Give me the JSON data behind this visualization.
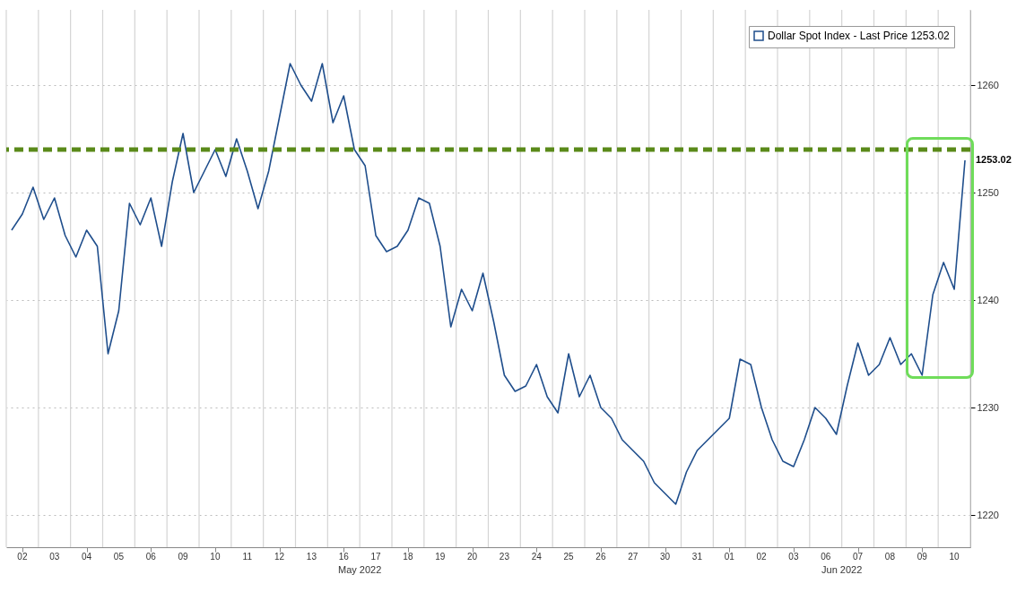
{
  "chart_data": {
    "type": "line",
    "categories": [
      null,
      "02",
      null,
      null,
      "03",
      null,
      null,
      "04",
      null,
      null,
      "05",
      null,
      null,
      "06",
      null,
      null,
      "09",
      null,
      null,
      "10",
      null,
      null,
      "11",
      null,
      null,
      "12",
      null,
      null,
      "13",
      null,
      null,
      "16",
      null,
      null,
      "17",
      null,
      null,
      "18",
      null,
      null,
      "19",
      null,
      null,
      "20",
      null,
      null,
      "23",
      null,
      null,
      "24",
      null,
      null,
      "25",
      null,
      null,
      "26",
      null,
      null,
      "27",
      null,
      null,
      "30",
      null,
      null,
      "31",
      null,
      null,
      "01",
      null,
      null,
      "02",
      null,
      null,
      "03",
      null,
      null,
      "06",
      null,
      null,
      "07",
      null,
      null,
      "08",
      null,
      null,
      "09",
      null,
      null,
      "10",
      null
    ],
    "series": [
      {
        "name": "Dollar Spot Index - Last Price 1253.02",
        "color": "#1f4e8c",
        "values": [
          1246.5,
          1248,
          1250.5,
          1247.5,
          1249.5,
          1246,
          1244,
          1246.5,
          1245,
          1235,
          1239,
          1249,
          1247,
          1249.5,
          1245,
          1251,
          1255.5,
          1250,
          1252,
          1254,
          1251.5,
          1255,
          1252,
          1248.5,
          1252,
          1257,
          1262,
          1260,
          1258.5,
          1262,
          1256.5,
          1259,
          1254,
          1252.5,
          1246,
          1244.5,
          1245,
          1246.5,
          1249.5,
          1249,
          1245,
          1237.5,
          1241,
          1239,
          1242.5,
          1238,
          1233,
          1231.5,
          1232,
          1234,
          1231,
          1229.5,
          1235,
          1231,
          1233,
          1230,
          1229,
          1227,
          1226,
          1225,
          1223,
          1222,
          1221,
          1224,
          1226,
          1227,
          1228,
          1229,
          1234.5,
          1234,
          1230,
          1227,
          1225,
          1224.5,
          1227,
          1230,
          1229,
          1227.5,
          1232,
          1236,
          1233,
          1234,
          1236.5,
          1234,
          1235,
          1233,
          1240.5,
          1243.5,
          1241,
          1253
        ]
      }
    ],
    "ylim": [
      1217,
      1267
    ],
    "yticks": [
      1220,
      1230,
      1240,
      1250,
      1260
    ],
    "grid": true,
    "legend": "top right",
    "ref_lines": [
      {
        "axis": "y",
        "value": 1254,
        "color": "#5a8a1a",
        "line_style": "dashed"
      }
    ],
    "annotations": [
      "May 2022",
      "Jun 2022",
      "1253.02"
    ]
  }
}
